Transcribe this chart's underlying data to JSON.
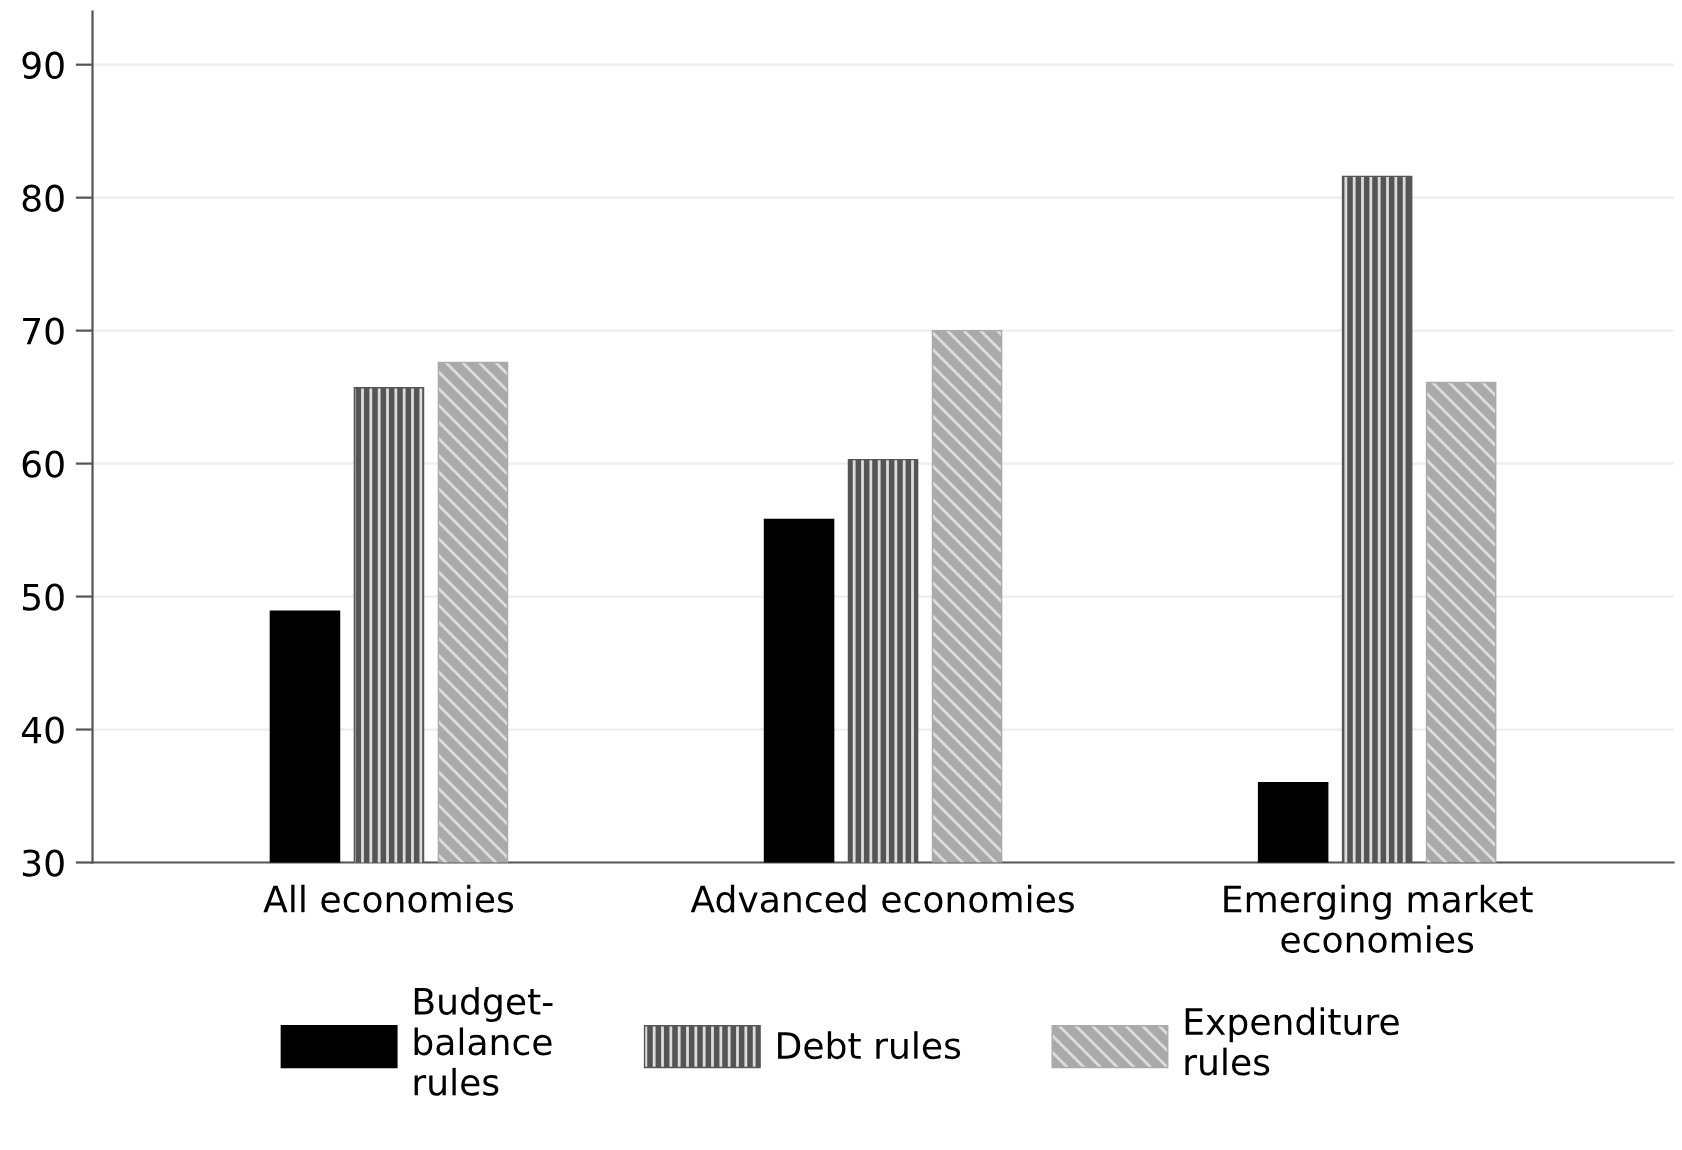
{
  "chart_data": {
    "type": "bar",
    "categories": [
      "All economies",
      "Advanced economies",
      "Emerging market\neconomies"
    ],
    "series": [
      {
        "name": "Budget-\nbalance\nrules",
        "color": "#000000",
        "values": [
          48.9,
          55.8,
          36.0
        ]
      },
      {
        "name": "Debt rules",
        "color": "#555555",
        "values": [
          65.7,
          60.3,
          81.6
        ]
      },
      {
        "name": "Expenditure\nrules",
        "color": "#aaaaaa",
        "values": [
          67.6,
          70.0,
          66.1
        ]
      }
    ],
    "ylim": [
      30,
      94
    ],
    "yticks": [
      30,
      40,
      50,
      60,
      70,
      80,
      90
    ],
    "grid": "y",
    "legend": "bottom"
  }
}
